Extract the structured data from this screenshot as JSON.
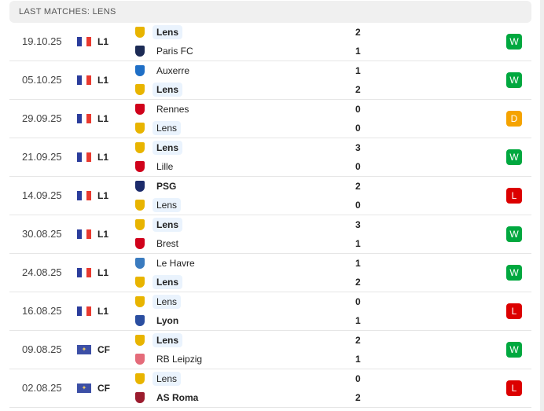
{
  "header": {
    "title": "LAST MATCHES: LENS"
  },
  "colors": {
    "W": "#00a83f",
    "D": "#f5a300",
    "L": "#dc0000",
    "highlight": "#eaf3fd"
  },
  "matches": [
    {
      "date": "19.10.25",
      "comp": "L1",
      "flag": "france",
      "home": "Lens",
      "away": "Paris FC",
      "hs": "2",
      "as": "1",
      "result": "W",
      "lens": "home",
      "winner": "home",
      "home_logo": "#e8b400",
      "away_logo": "#1c2b55"
    },
    {
      "date": "05.10.25",
      "comp": "L1",
      "flag": "france",
      "home": "Auxerre",
      "away": "Lens",
      "hs": "1",
      "as": "2",
      "result": "W",
      "lens": "away",
      "winner": "away",
      "home_logo": "#1f6fc6",
      "away_logo": "#e8b400"
    },
    {
      "date": "29.09.25",
      "comp": "L1",
      "flag": "france",
      "home": "Rennes",
      "away": "Lens",
      "hs": "0",
      "as": "0",
      "result": "D",
      "lens": "away",
      "winner": "none",
      "home_logo": "#d0021b",
      "away_logo": "#e8b400"
    },
    {
      "date": "21.09.25",
      "comp": "L1",
      "flag": "france",
      "home": "Lens",
      "away": "Lille",
      "hs": "3",
      "as": "0",
      "result": "W",
      "lens": "home",
      "winner": "home",
      "home_logo": "#e8b400",
      "away_logo": "#d0021b"
    },
    {
      "date": "14.09.25",
      "comp": "L1",
      "flag": "france",
      "home": "PSG",
      "away": "Lens",
      "hs": "2",
      "as": "0",
      "result": "L",
      "lens": "away",
      "winner": "home",
      "home_logo": "#1c2b6b",
      "away_logo": "#e8b400"
    },
    {
      "date": "30.08.25",
      "comp": "L1",
      "flag": "france",
      "home": "Lens",
      "away": "Brest",
      "hs": "3",
      "as": "1",
      "result": "W",
      "lens": "home",
      "winner": "home",
      "home_logo": "#e8b400",
      "away_logo": "#d0021b"
    },
    {
      "date": "24.08.25",
      "comp": "L1",
      "flag": "france",
      "home": "Le Havre",
      "away": "Lens",
      "hs": "1",
      "as": "2",
      "result": "W",
      "lens": "away",
      "winner": "away",
      "home_logo": "#3a7bbf",
      "away_logo": "#e8b400"
    },
    {
      "date": "16.08.25",
      "comp": "L1",
      "flag": "france",
      "home": "Lens",
      "away": "Lyon",
      "hs": "0",
      "as": "1",
      "result": "L",
      "lens": "home",
      "winner": "away",
      "home_logo": "#e8b400",
      "away_logo": "#2a4ea0"
    },
    {
      "date": "09.08.25",
      "comp": "CF",
      "flag": "world",
      "home": "Lens",
      "away": "RB Leipzig",
      "hs": "2",
      "as": "1",
      "result": "W",
      "lens": "home",
      "winner": "home",
      "home_logo": "#e8b400",
      "away_logo": "#e46b7a"
    },
    {
      "date": "02.08.25",
      "comp": "CF",
      "flag": "world",
      "home": "Lens",
      "away": "AS Roma",
      "hs": "0",
      "as": "2",
      "result": "L",
      "lens": "home",
      "winner": "away",
      "home_logo": "#e8b400",
      "away_logo": "#9b1c2e"
    }
  ]
}
